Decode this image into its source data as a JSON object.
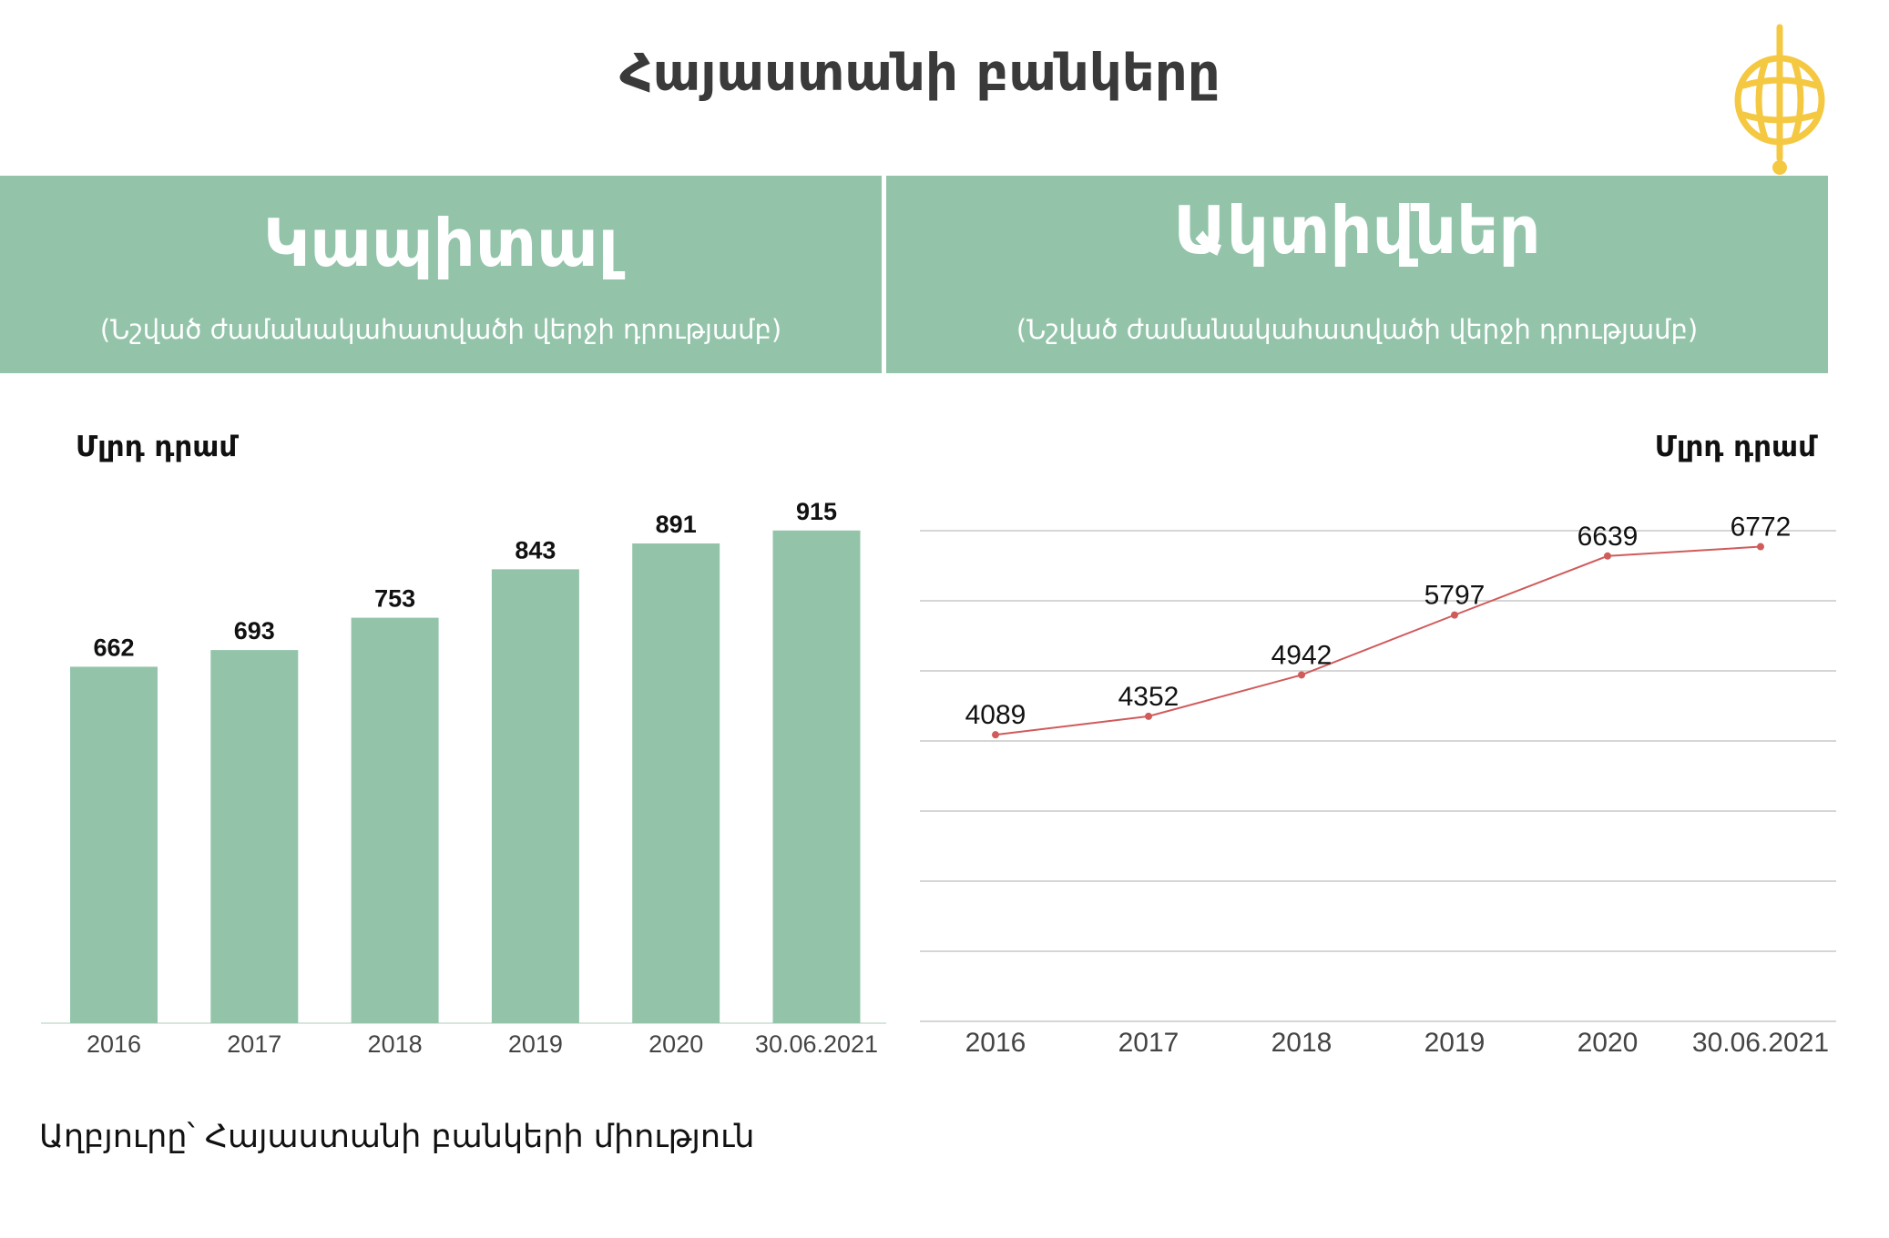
{
  "page": {
    "title": "Հայաստանի բանկերը",
    "source": "Աղբյուրը՝ Հայաստանի բանկերի միություն"
  },
  "panels": {
    "left": {
      "title": "Կապիտալ",
      "subtitle": "(Նշված ժամանակահատվածի վերջի դրությամբ)"
    },
    "right": {
      "title": "Ակտիվներ",
      "subtitle": "(Նշված ժամանակահատվածի վերջի դրությամբ)"
    }
  },
  "colors": {
    "panel_bg": "#93c4aa",
    "bar": "#93c4aa",
    "line": "#d05b5b",
    "grid": "#c8c8c8",
    "logo": "#f5c842"
  },
  "chart_data": [
    {
      "type": "bar",
      "title": "Կապիտալ",
      "ylabel": "Մլրդ դրամ",
      "categories": [
        "2016",
        "2017",
        "2018",
        "2019",
        "2020",
        "30.06.2021"
      ],
      "values": [
        662,
        693,
        753,
        843,
        891,
        915
      ],
      "ylim": [
        0,
        940
      ],
      "grid": false,
      "color": "#93c4aa"
    },
    {
      "type": "line",
      "title": "Ակտիվներ",
      "ylabel": "Մլրդ դրամ",
      "categories": [
        "2016",
        "2017",
        "2018",
        "2019",
        "2020",
        "30.06.2021"
      ],
      "values": [
        4089,
        4352,
        4942,
        5797,
        6639,
        6772
      ],
      "grid": true,
      "color": "#d05b5b"
    }
  ]
}
